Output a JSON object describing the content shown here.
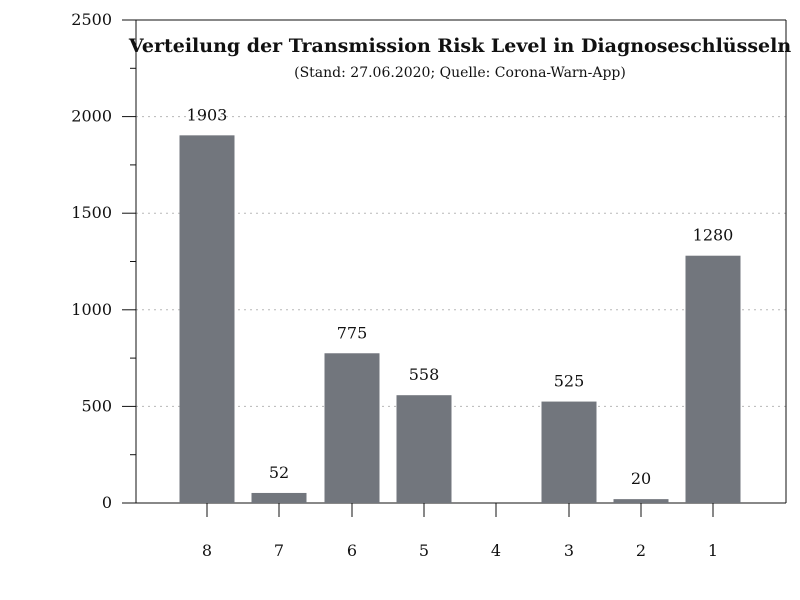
{
  "chart_data": {
    "type": "bar",
    "title": "Verteilung der Transmission Risk Level in Diagnoseschlüsseln",
    "subtitle": "(Stand: 27.06.2020; Quelle: Corona-Warn-App)",
    "categories": [
      "8",
      "7",
      "6",
      "5",
      "4",
      "3",
      "2",
      "1"
    ],
    "values": [
      1903,
      52,
      775,
      558,
      0,
      525,
      20,
      1280
    ],
    "data_labels": [
      "1903",
      "52",
      "775",
      "558",
      "",
      "525",
      "20",
      "1280"
    ],
    "y_ticks": [
      0,
      500,
      1000,
      1500,
      2000,
      2500
    ],
    "y_tick_labels": [
      "0",
      "500",
      "1000",
      "1500",
      "2000",
      "2500"
    ],
    "ylim": [
      0,
      2500
    ],
    "grid": "horizontal-dotted",
    "legend": "none",
    "colors": {
      "bar": "#72767d",
      "axis": "#111111",
      "grid": "#b8b8b8",
      "text": "#111111",
      "background": "#ffffff"
    }
  }
}
